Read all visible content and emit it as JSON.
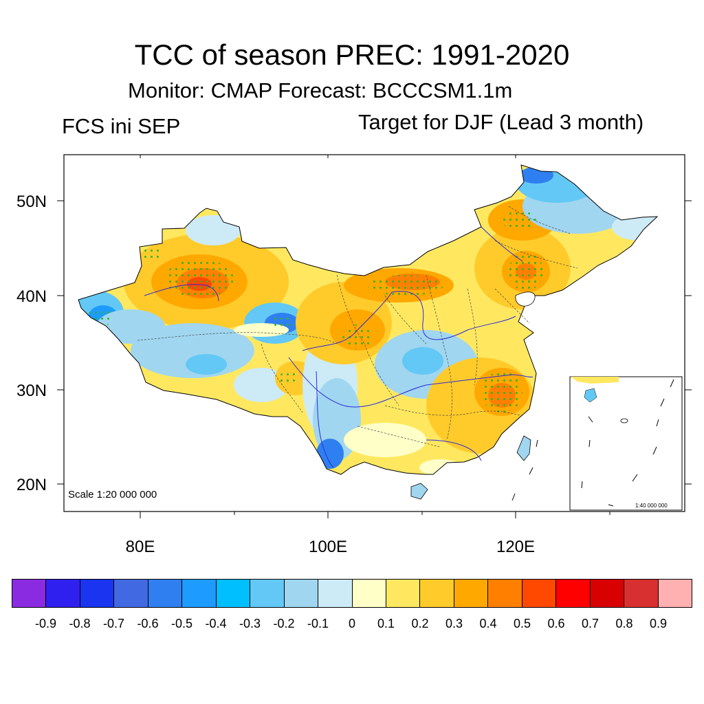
{
  "title": "TCC of season PREC: 1991-2020",
  "subtitle": "Monitor: CMAP   Forecast: BCCCSM1.1m",
  "left_label": "FCS ini SEP",
  "right_label": "Target for DJF (Lead 3 month)",
  "map": {
    "lat_labels": [
      "50N",
      "40N",
      "30N",
      "20N"
    ],
    "lon_labels": [
      "80E",
      "100E",
      "120E"
    ],
    "scale_main": "Scale 1:20 000 000",
    "scale_inset": "1:40 000 000",
    "significance_marker": "green-dot-stipple"
  },
  "colorbar": {
    "colors": [
      "#8a2be2",
      "#3020f0",
      "#1a34f0",
      "#4169e1",
      "#2f7ff0",
      "#1e9bff",
      "#00bfff",
      "#63c8f5",
      "#a0d6f0",
      "#cdeaf7",
      "#ffffc8",
      "#ffe860",
      "#ffcb2a",
      "#ffa800",
      "#ff8000",
      "#ff4800",
      "#ff0000",
      "#d80000",
      "#d83030",
      "#ffb0b0"
    ],
    "labels": [
      "-0.9",
      "-0.8",
      "-0.7",
      "-0.6",
      "-0.5",
      "-0.4",
      "-0.3",
      "-0.2",
      "-0.1",
      "0",
      "0.1",
      "0.2",
      "0.3",
      "0.4",
      "0.5",
      "0.6",
      "0.7",
      "0.8",
      "0.9"
    ]
  }
}
